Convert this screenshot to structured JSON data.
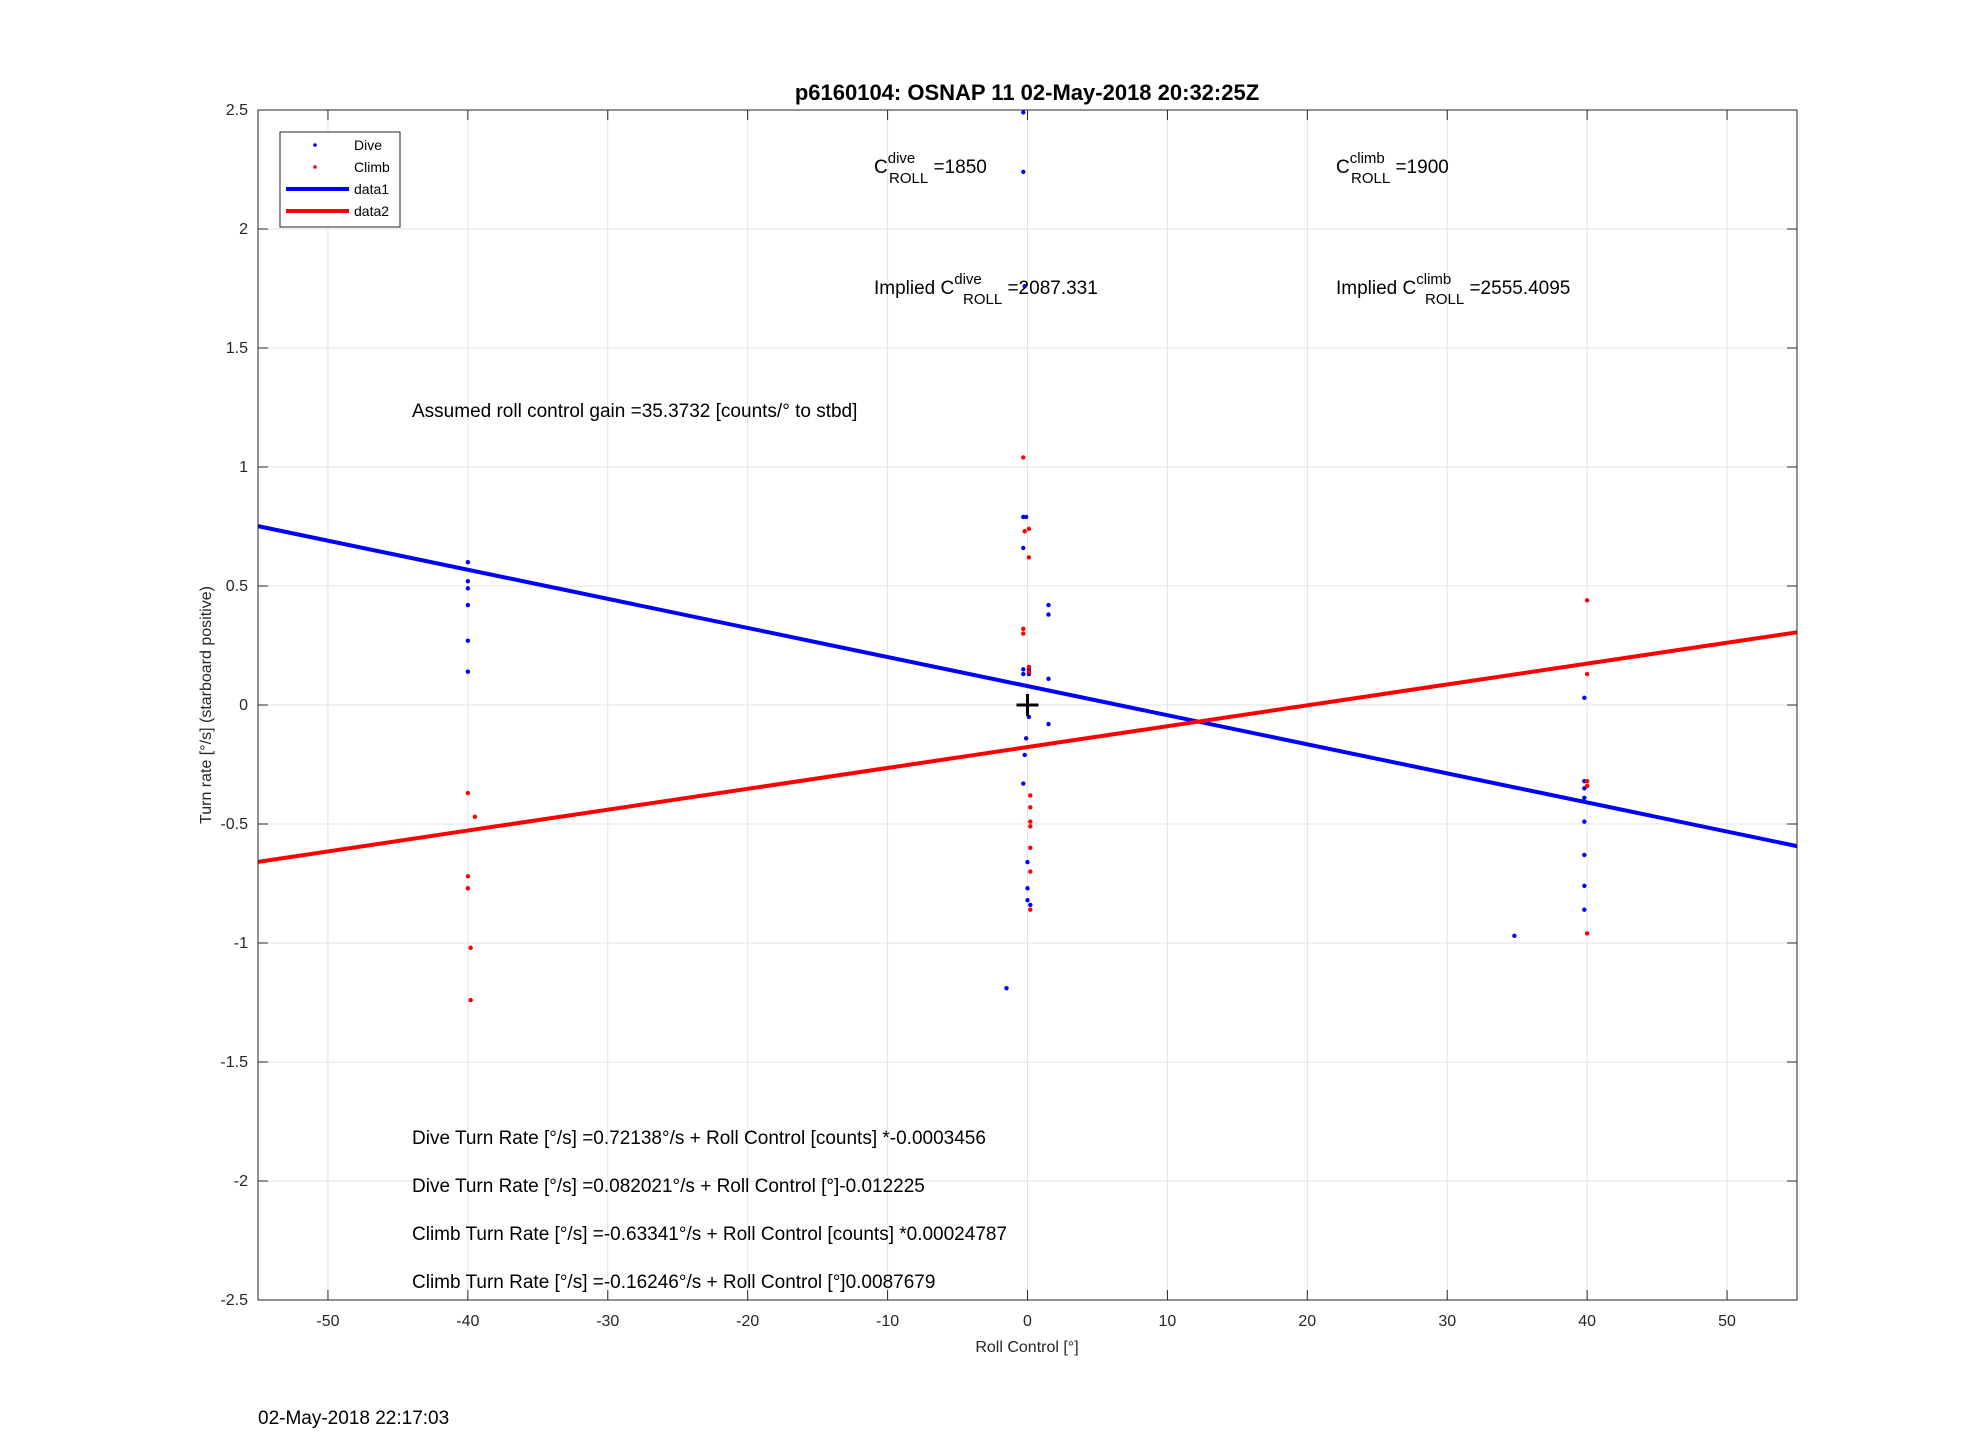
{
  "chart_data": {
    "type": "scatter",
    "title": "p6160104: OSNAP 11 02-May-2018 20:32:25Z",
    "xlabel": "Roll Control [°]",
    "ylabel": "Turn rate [°/s] (starboard positive)",
    "xlim": [
      -55,
      55
    ],
    "ylim": [
      -2.5,
      2.5
    ],
    "xticks": [
      -50,
      -40,
      -30,
      -20,
      -10,
      0,
      10,
      20,
      30,
      40,
      50
    ],
    "xtick_labels": [
      "-50",
      "-40",
      "-30",
      "-20",
      "-10",
      "0",
      "10",
      "20",
      "30",
      "40",
      "50"
    ],
    "yticks": [
      -2.5,
      -2,
      -1.5,
      -1,
      -0.5,
      0,
      0.5,
      1,
      1.5,
      2,
      2.5
    ],
    "ytick_labels": [
      "-2.5",
      "-2",
      "-1.5",
      "-1",
      "-0.5",
      "0",
      "0.5",
      "1",
      "1.5",
      "2",
      "2.5"
    ],
    "grid": true,
    "legend_position": "top-left",
    "legend": [
      "Dive",
      "Climb",
      "data1",
      "data2"
    ],
    "series": [
      {
        "name": "Dive",
        "mode": "markers",
        "color": "#0000ff",
        "points": [
          [
            -40,
            0.6
          ],
          [
            -40,
            0.52
          ],
          [
            -40,
            0.49
          ],
          [
            -40,
            0.42
          ],
          [
            -40,
            0.27
          ],
          [
            -40,
            0.14
          ],
          [
            -0.3,
            2.49
          ],
          [
            -0.3,
            2.24
          ],
          [
            -0.2,
            1.76
          ],
          [
            -0.3,
            0.79
          ],
          [
            -0.1,
            0.79
          ],
          [
            -0.3,
            0.66
          ],
          [
            -0.3,
            0.15
          ],
          [
            0.1,
            0.15
          ],
          [
            -0.3,
            0.13
          ],
          [
            0.1,
            0.13
          ],
          [
            0,
            0.0
          ],
          [
            0.1,
            -0.05
          ],
          [
            -0.1,
            -0.14
          ],
          [
            -0.2,
            -0.21
          ],
          [
            -0.3,
            -0.33
          ],
          [
            0,
            -0.66
          ],
          [
            0,
            -0.77
          ],
          [
            0,
            -0.82
          ],
          [
            0.2,
            -0.84
          ],
          [
            1.5,
            0.42
          ],
          [
            1.5,
            0.38
          ],
          [
            1.5,
            0.11
          ],
          [
            1.5,
            -0.08
          ],
          [
            -1.5,
            -1.19
          ],
          [
            34.8,
            -0.97
          ],
          [
            39.8,
            0.03
          ],
          [
            39.8,
            -0.32
          ],
          [
            39.8,
            -0.35
          ],
          [
            39.8,
            -0.39
          ],
          [
            39.8,
            -0.49
          ],
          [
            39.8,
            -0.63
          ],
          [
            39.8,
            -0.76
          ],
          [
            39.8,
            -0.86
          ]
        ]
      },
      {
        "name": "Climb",
        "mode": "markers",
        "color": "#ff0000",
        "points": [
          [
            -40,
            -0.37
          ],
          [
            -39.5,
            -0.47
          ],
          [
            -40,
            -0.72
          ],
          [
            -40,
            -0.77
          ],
          [
            -39.8,
            -1.02
          ],
          [
            -39.8,
            -1.24
          ],
          [
            -0.3,
            1.04
          ],
          [
            0.1,
            0.74
          ],
          [
            -0.2,
            0.73
          ],
          [
            0.1,
            0.62
          ],
          [
            -0.3,
            0.32
          ],
          [
            -0.3,
            0.3
          ],
          [
            0.1,
            0.16
          ],
          [
            0.1,
            0.14
          ],
          [
            0.2,
            -0.38
          ],
          [
            0.2,
            -0.43
          ],
          [
            0.2,
            -0.49
          ],
          [
            0.2,
            -0.51
          ],
          [
            0.2,
            -0.6
          ],
          [
            0.2,
            -0.7
          ],
          [
            0.2,
            -0.86
          ],
          [
            40,
            0.44
          ],
          [
            40,
            0.13
          ],
          [
            40,
            -0.32
          ],
          [
            40,
            -0.34
          ],
          [
            40,
            -0.96
          ]
        ]
      },
      {
        "name": "data1",
        "mode": "line",
        "color": "#0000ff",
        "points": [
          [
            -55,
            0.7516
          ],
          [
            55,
            -0.5929
          ]
        ]
      },
      {
        "name": "data2",
        "mode": "line",
        "color": "#ff0000",
        "points": [
          [
            -55,
            -0.659
          ],
          [
            55,
            0.3055
          ]
        ]
      }
    ],
    "crosshair_marker": [
      0,
      0
    ],
    "annotations": {
      "c_dive_base": "C",
      "c_dive_sup": "dive",
      "c_dive_sub": "ROLL",
      "c_dive_value": " =1850",
      "c_climb_base": "C",
      "c_climb_sup": "climb",
      "c_climb_sub": "ROLL",
      "c_climb_value": " =1900",
      "implied_dive_base": "Implied C",
      "implied_dive_sup": "dive",
      "implied_dive_sub": "ROLL",
      "implied_dive_value": " =2087.331",
      "implied_climb_base": "Implied C",
      "implied_climb_sup": "climb",
      "implied_climb_sub": "ROLL",
      "implied_climb_value": " =2555.4095",
      "gain": "Assumed roll control gain =35.3732 [counts/° to stbd]",
      "dive_counts": "Dive Turn Rate [°/s] =0.72138°/s + Roll Control [counts] *-0.0003456",
      "dive_deg": "Dive Turn Rate [°/s] =0.082021°/s + Roll Control [°]-0.012225",
      "climb_counts": "Climb Turn Rate [°/s] =-0.63341°/s + Roll Control [counts] *0.00024787",
      "climb_deg": "Climb Turn Rate [°/s] =-0.16246°/s + Roll Control [°]0.0087679"
    }
  },
  "footer": {
    "timestamp": "02-May-2018 22:17:03"
  }
}
